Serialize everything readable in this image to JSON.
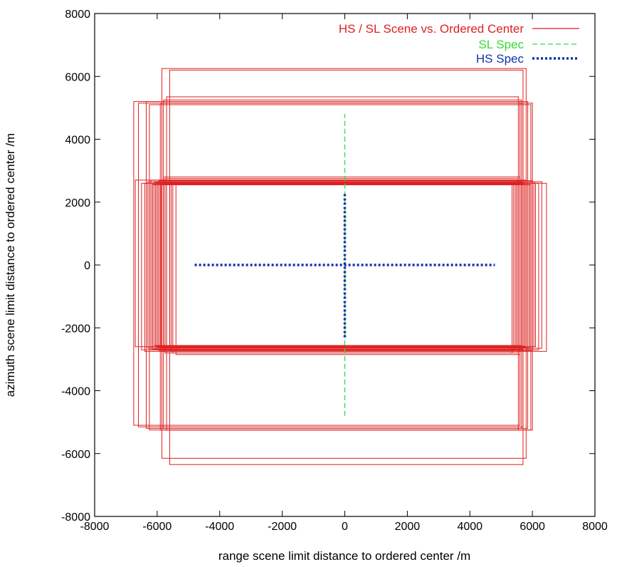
{
  "chart_data": {
    "type": "line",
    "xlabel": "range scene limit distance to ordered center /m",
    "ylabel": "azimuth scene limit distance to ordered center /m",
    "xlim": [
      -8000,
      8000
    ],
    "ylim": [
      -8000,
      8000
    ],
    "xticks": [
      "-8000",
      "-6000",
      "-4000",
      "-2000",
      "0",
      "2000",
      "4000",
      "6000",
      "8000"
    ],
    "yticks": [
      "-8000",
      "-6000",
      "-4000",
      "-2000",
      "0",
      "2000",
      "4000",
      "6000",
      "8000"
    ],
    "grid": false,
    "legend_position": "top-right",
    "series": [
      {
        "name": "HS / SL Scene vs. Ordered Center",
        "color": "#dd2222",
        "style": "solid",
        "rectangles": [
          {
            "xmin": -6750,
            "xmax": 5600,
            "ymin": -5100,
            "ymax": 5200
          },
          {
            "xmin": -6600,
            "xmax": 5700,
            "ymin": -5150,
            "ymax": 5150
          },
          {
            "xmin": -6350,
            "xmax": 5850,
            "ymin": -5200,
            "ymax": 5200
          },
          {
            "xmin": -6250,
            "xmax": 5950,
            "ymin": -5250,
            "ymax": 5100
          },
          {
            "xmin": -5900,
            "xmax": 6000,
            "ymin": -5250,
            "ymax": 5150
          },
          {
            "xmin": -5850,
            "xmax": 5800,
            "ymin": -6150,
            "ymax": 6250
          },
          {
            "xmin": -5600,
            "xmax": 5700,
            "ymin": -6350,
            "ymax": 6200
          },
          {
            "xmin": -5800,
            "xmax": 5650,
            "ymin": -5200,
            "ymax": 5250
          },
          {
            "xmin": -5700,
            "xmax": 5550,
            "ymin": -5250,
            "ymax": 5350
          },
          {
            "xmin": -6700,
            "xmax": 5500,
            "ymin": -2600,
            "ymax": 2700
          },
          {
            "xmin": -6500,
            "xmax": 6200,
            "ymin": -2700,
            "ymax": 2600
          },
          {
            "xmin": -6400,
            "xmax": 6450,
            "ymin": -2750,
            "ymax": 2600
          },
          {
            "xmin": -6300,
            "xmax": 6300,
            "ymin": -2650,
            "ymax": 2650
          },
          {
            "xmin": -6250,
            "xmax": 6100,
            "ymin": -2600,
            "ymax": 2600
          },
          {
            "xmin": -6200,
            "xmax": 5800,
            "ymin": -2700,
            "ymax": 2700
          },
          {
            "xmin": -6150,
            "xmax": 5950,
            "ymin": -2650,
            "ymax": 2550
          },
          {
            "xmin": -6100,
            "xmax": 6050,
            "ymin": -2600,
            "ymax": 2650
          },
          {
            "xmin": -6050,
            "xmax": 5900,
            "ymin": -2700,
            "ymax": 2650
          },
          {
            "xmin": -6000,
            "xmax": 5750,
            "ymin": -2650,
            "ymax": 2600
          },
          {
            "xmin": -5950,
            "xmax": 5850,
            "ymin": -2600,
            "ymax": 2550
          },
          {
            "xmin": -5900,
            "xmax": 5700,
            "ymin": -2650,
            "ymax": 2650
          },
          {
            "xmin": -5850,
            "xmax": 5650,
            "ymin": -2700,
            "ymax": 2700
          },
          {
            "xmin": -5800,
            "xmax": 5600,
            "ymin": -2750,
            "ymax": 2800
          },
          {
            "xmin": -5750,
            "xmax": 5550,
            "ymin": -2800,
            "ymax": 2750
          },
          {
            "xmin": -5700,
            "xmax": 5500,
            "ymin": -2650,
            "ymax": 2600
          },
          {
            "xmin": -5600,
            "xmax": 5450,
            "ymin": -2700,
            "ymax": 2650
          },
          {
            "xmin": -5550,
            "xmax": 5400,
            "ymin": -2750,
            "ymax": 2700
          },
          {
            "xmin": -5500,
            "xmax": 5350,
            "ymin": -2800,
            "ymax": 2650
          },
          {
            "xmin": -5400,
            "xmax": 5600,
            "ymin": -2850,
            "ymax": 2600
          },
          {
            "xmin": -6000,
            "xmax": 5800,
            "ymin": -2620,
            "ymax": 2550
          },
          {
            "xmin": -6050,
            "xmax": 5750,
            "ymin": -2580,
            "ymax": 2620
          },
          {
            "xmin": -6150,
            "xmax": 5700,
            "ymin": -2680,
            "ymax": 2580
          },
          {
            "xmin": -5950,
            "xmax": 6000,
            "ymin": -2720,
            "ymax": 2680
          },
          {
            "xmin": -5880,
            "xmax": 5900,
            "ymin": -2640,
            "ymax": 2560
          },
          {
            "xmin": -6100,
            "xmax": 5650,
            "ymin": -2560,
            "ymax": 2640
          }
        ]
      },
      {
        "name": "SL Spec",
        "color": "#33dd33",
        "style": "dashed",
        "segments": [
          {
            "x1": 0,
            "y1": -4800,
            "x2": 0,
            "y2": 4800
          }
        ]
      },
      {
        "name": "HS Spec",
        "color": "#1133aa",
        "style": "dotted",
        "segments": [
          {
            "x1": -4800,
            "y1": 0,
            "x2": 4800,
            "y2": 0
          },
          {
            "x1": 0,
            "y1": -2300,
            "x2": 0,
            "y2": 2300
          }
        ]
      }
    ]
  }
}
